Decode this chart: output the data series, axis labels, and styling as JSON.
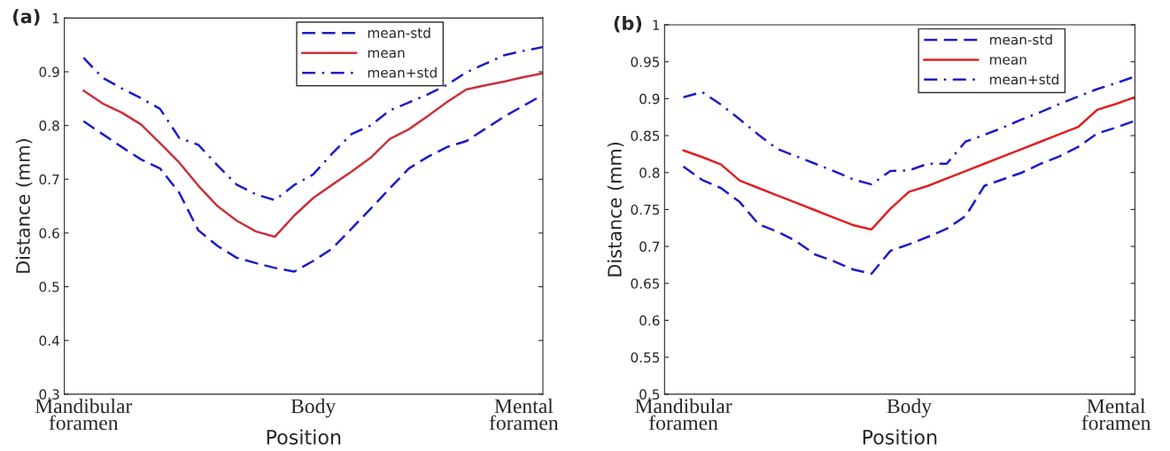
{
  "chart_data": [
    {
      "type": "line",
      "title": "(a)",
      "xlabel": "Position",
      "ylabel": "Distance (mm)",
      "categories": [
        null,
        "Mandibular\nforamen",
        null,
        null,
        null,
        null,
        null,
        null,
        null,
        null,
        null,
        null,
        null,
        "Body",
        null,
        null,
        null,
        null,
        null,
        null,
        null,
        null,
        null,
        null,
        "Mental\nforamen",
        null
      ],
      "ylim": [
        0.3,
        1
      ],
      "yticks": [
        0.3,
        0.4,
        0.5,
        0.6,
        0.7,
        0.8,
        0.9,
        1
      ],
      "grid": false,
      "legend": "top right",
      "series": [
        {
          "name": "mean-std",
          "color": "#1c1cc8",
          "line_style": "dashed",
          "values": [
            null,
            0.808,
            0.784,
            0.76,
            0.737,
            0.72,
            0.675,
            0.605,
            0.576,
            0.554,
            0.544,
            0.535,
            0.528,
            0.548,
            0.571,
            0.608,
            0.645,
            0.683,
            0.72,
            0.742,
            0.76,
            0.771,
            0.794,
            0.817,
            0.837,
            0.857
          ]
        },
        {
          "name": "mean",
          "color": "#c8323c",
          "line_style": "solid",
          "values": [
            null,
            0.865,
            0.841,
            0.824,
            0.802,
            0.767,
            0.731,
            0.688,
            0.65,
            0.623,
            0.603,
            0.593,
            0.632,
            0.665,
            0.69,
            0.714,
            0.74,
            0.775,
            0.793,
            0.818,
            0.844,
            0.867,
            0.875,
            0.882,
            0.89,
            0.897
          ]
        },
        {
          "name": "mean+std",
          "color": "#1c1cc8",
          "line_style": "dashdot",
          "values": [
            null,
            0.926,
            0.889,
            0.869,
            0.851,
            0.831,
            0.777,
            0.764,
            0.726,
            0.69,
            0.672,
            0.661,
            0.689,
            0.709,
            0.748,
            0.784,
            0.8,
            0.828,
            0.843,
            0.858,
            0.876,
            0.899,
            0.915,
            0.931,
            0.939,
            0.946
          ]
        }
      ]
    },
    {
      "type": "line",
      "title": "(b)",
      "xlabel": "Position",
      "ylabel": "Distance (mm)",
      "categories": [
        null,
        "Mandibular\nforamen",
        null,
        null,
        null,
        null,
        null,
        null,
        null,
        null,
        null,
        null,
        null,
        "Body",
        null,
        null,
        null,
        null,
        null,
        null,
        null,
        null,
        null,
        null,
        "Mental\nforamen",
        null
      ],
      "ylim": [
        0.5,
        1
      ],
      "yticks": [
        0.5,
        0.55,
        0.6,
        0.65,
        0.7,
        0.75,
        0.8,
        0.85,
        0.9,
        0.95,
        1
      ],
      "grid": false,
      "legend": "top right",
      "series": [
        {
          "name": "mean-std",
          "color": "#1c1cc8",
          "line_style": "dashed",
          "values": [
            null,
            0.808,
            0.79,
            0.779,
            0.76,
            0.73,
            0.72,
            0.707,
            0.689,
            0.68,
            0.669,
            0.663,
            0.694,
            0.703,
            0.713,
            0.724,
            0.741,
            0.782,
            0.791,
            0.8,
            0.812,
            0.822,
            0.835,
            0.853,
            0.861,
            0.87
          ]
        },
        {
          "name": "mean",
          "color": "#e02020",
          "line_style": "solid",
          "values": [
            null,
            0.83,
            0.821,
            0.811,
            0.789,
            0.779,
            0.769,
            0.759,
            0.749,
            0.739,
            0.729,
            0.723,
            0.751,
            0.774,
            0.782,
            0.792,
            0.802,
            0.812,
            0.822,
            0.832,
            0.842,
            0.852,
            0.862,
            0.885,
            0.893,
            0.902
          ]
        },
        {
          "name": "mean+std",
          "color": "#1c1cc8",
          "line_style": "dashdot",
          "values": [
            null,
            0.902,
            0.909,
            0.892,
            0.872,
            0.851,
            0.832,
            0.822,
            0.812,
            0.802,
            0.791,
            0.784,
            0.802,
            0.803,
            0.812,
            0.812,
            0.842,
            0.851,
            0.861,
            0.872,
            0.882,
            0.893,
            0.903,
            0.913,
            0.921,
            0.93
          ]
        }
      ]
    }
  ]
}
